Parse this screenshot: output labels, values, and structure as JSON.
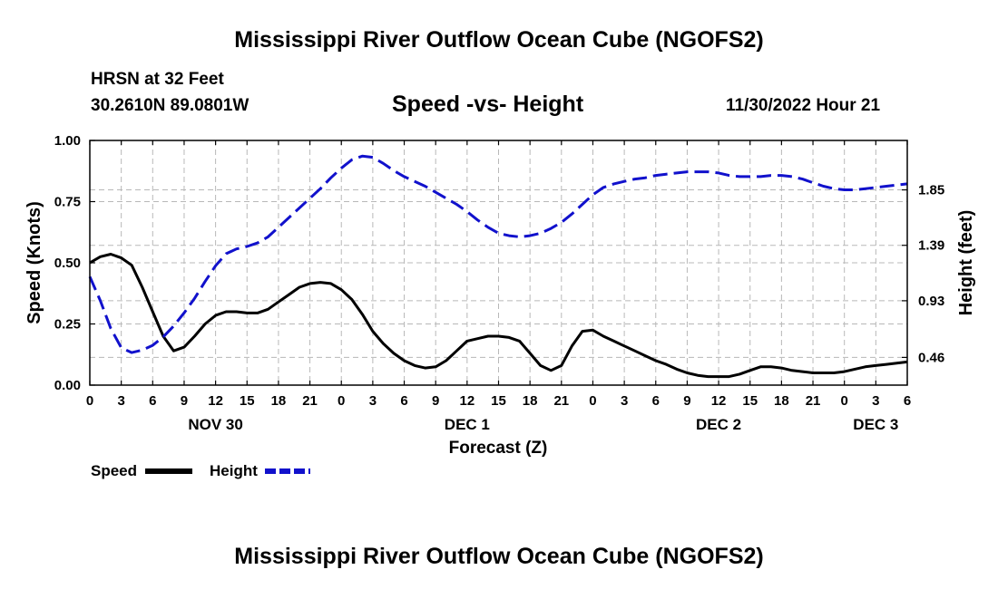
{
  "page": {
    "title": "Mississippi River Outflow Ocean Cube (NGOFS2)",
    "title_repeat": "Mississippi River Outflow Ocean Cube (NGOFS2)",
    "station": "HRSN at 32 Feet",
    "coordinates": "30.2610N  89.0801W",
    "subtitle": "Speed -vs- Height",
    "datetime": "11/30/2022 Hour 21"
  },
  "chart_data": {
    "type": "line",
    "title": "Speed -vs- Height",
    "xlabel": "Forecast (Z)",
    "ylabel": "Speed (Knots)",
    "y2label": "Height (feet)",
    "x_unit": "hours since NOV 30 00Z",
    "xlim": [
      0,
      78
    ],
    "ylim": [
      0,
      1
    ],
    "y2lim": [
      0.23,
      2.26
    ],
    "x_tick_step": 3,
    "x_tick_labels": [
      "0",
      "3",
      "6",
      "9",
      "12",
      "15",
      "18",
      "21",
      "0",
      "3",
      "6",
      "9",
      "12",
      "15",
      "18",
      "21",
      "0",
      "3",
      "6",
      "9",
      "12",
      "15",
      "18",
      "21",
      "0",
      "3",
      "6"
    ],
    "day_labels": [
      {
        "label": "NOV 30",
        "x": 12
      },
      {
        "label": "DEC 1",
        "x": 36
      },
      {
        "label": "DEC 2",
        "x": 60
      },
      {
        "label": "DEC 3",
        "x": 75
      }
    ],
    "y_ticks": [
      0,
      0.25,
      0.5,
      0.75,
      1.0
    ],
    "y_tick_labels": [
      "0.00",
      "0.25",
      "0.50",
      "0.75",
      "1.00"
    ],
    "y2_ticks": [
      0.46,
      0.93,
      1.39,
      1.85
    ],
    "y2_tick_labels": [
      "0.46",
      "0.93",
      "1.39",
      "1.85"
    ],
    "grid": true,
    "legend": "bottom-left",
    "series": [
      {
        "name": "Speed",
        "axis": "left",
        "color": "#000000",
        "dash": "solid",
        "x": [
          0,
          1,
          2,
          3,
          4,
          5,
          6,
          7,
          8,
          9,
          10,
          11,
          12,
          13,
          14,
          15,
          16,
          17,
          18,
          19,
          20,
          21,
          22,
          23,
          24,
          25,
          26,
          27,
          28,
          29,
          30,
          31,
          32,
          33,
          34,
          35,
          36,
          37,
          38,
          39,
          40,
          41,
          42,
          43,
          44,
          45,
          46,
          47,
          48,
          49,
          50,
          51,
          52,
          53,
          54,
          55,
          56,
          57,
          58,
          59,
          60,
          61,
          62,
          63,
          64,
          65,
          66,
          67,
          68,
          69,
          70,
          71,
          72,
          73,
          74,
          75,
          76,
          77,
          78
        ],
        "values": [
          0.5,
          0.525,
          0.535,
          0.52,
          0.49,
          0.4,
          0.3,
          0.2,
          0.14,
          0.155,
          0.2,
          0.25,
          0.285,
          0.3,
          0.3,
          0.295,
          0.295,
          0.31,
          0.34,
          0.37,
          0.4,
          0.415,
          0.42,
          0.415,
          0.39,
          0.35,
          0.29,
          0.22,
          0.17,
          0.13,
          0.1,
          0.08,
          0.07,
          0.075,
          0.1,
          0.14,
          0.18,
          0.19,
          0.2,
          0.2,
          0.195,
          0.18,
          0.13,
          0.08,
          0.06,
          0.08,
          0.16,
          0.22,
          0.225,
          0.2,
          0.18,
          0.16,
          0.14,
          0.12,
          0.1,
          0.085,
          0.065,
          0.05,
          0.04,
          0.035,
          0.035,
          0.035,
          0.045,
          0.06,
          0.075,
          0.075,
          0.07,
          0.06,
          0.055,
          0.05,
          0.05,
          0.05,
          0.055,
          0.065,
          0.075,
          0.08,
          0.085,
          0.09,
          0.095
        ]
      },
      {
        "name": "Height",
        "axis": "right",
        "color": "#1111cc",
        "dash": "dashed",
        "x": [
          0,
          1,
          2,
          3,
          4,
          5,
          6,
          7,
          8,
          9,
          10,
          11,
          12,
          13,
          14,
          15,
          16,
          17,
          18,
          19,
          20,
          21,
          22,
          23,
          24,
          25,
          26,
          27,
          28,
          29,
          30,
          31,
          32,
          33,
          34,
          35,
          36,
          37,
          38,
          39,
          40,
          41,
          42,
          43,
          44,
          45,
          46,
          47,
          48,
          49,
          50,
          51,
          52,
          53,
          54,
          55,
          56,
          57,
          58,
          59,
          60,
          61,
          62,
          63,
          64,
          65,
          66,
          67,
          68,
          69,
          70,
          71,
          72,
          73,
          74,
          75,
          76,
          77,
          78
        ],
        "values": [
          1.13,
          0.93,
          0.7,
          0.54,
          0.5,
          0.52,
          0.56,
          0.63,
          0.72,
          0.83,
          0.95,
          1.09,
          1.22,
          1.32,
          1.36,
          1.38,
          1.41,
          1.46,
          1.54,
          1.62,
          1.7,
          1.78,
          1.86,
          1.95,
          2.03,
          2.1,
          2.13,
          2.12,
          2.07,
          2.01,
          1.96,
          1.92,
          1.88,
          1.83,
          1.78,
          1.73,
          1.67,
          1.6,
          1.54,
          1.49,
          1.47,
          1.46,
          1.47,
          1.49,
          1.53,
          1.58,
          1.65,
          1.73,
          1.81,
          1.87,
          1.9,
          1.92,
          1.94,
          1.95,
          1.97,
          1.98,
          1.99,
          2.0,
          2.0,
          2.0,
          1.99,
          1.97,
          1.96,
          1.96,
          1.96,
          1.97,
          1.97,
          1.96,
          1.94,
          1.91,
          1.88,
          1.86,
          1.85,
          1.85,
          1.86,
          1.87,
          1.88,
          1.89,
          1.9
        ]
      }
    ]
  }
}
